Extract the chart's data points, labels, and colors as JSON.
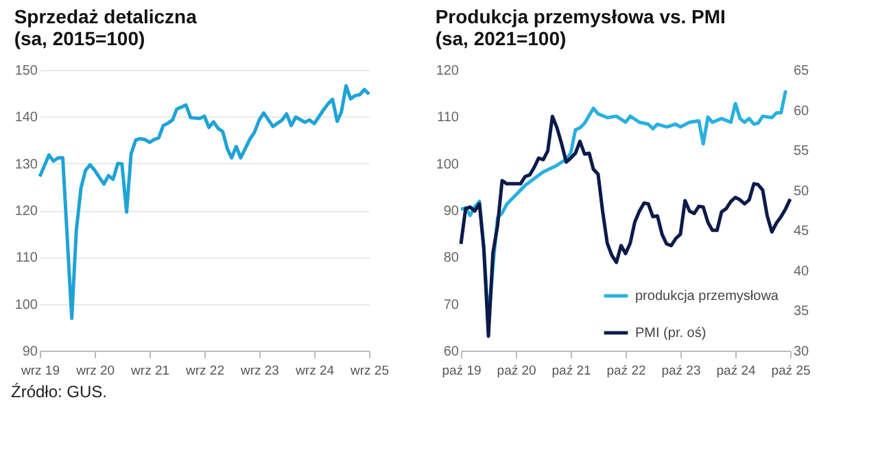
{
  "chart_data": [
    {
      "type": "line",
      "title": "Sprzedaż detaliczna",
      "subtitle": "(sa, 2015=100)",
      "grid": "y",
      "legend": false,
      "xlim": [
        "2019-09",
        "2025-09"
      ],
      "xticks": [
        {
          "value": "2019-09",
          "label": "wrz 19"
        },
        {
          "value": "2020-09",
          "label": "wrz 20"
        },
        {
          "value": "2021-09",
          "label": "wrz 21"
        },
        {
          "value": "2022-09",
          "label": "wrz 22"
        },
        {
          "value": "2023-09",
          "label": "wrz 23"
        },
        {
          "value": "2024-09",
          "label": "wrz 24"
        },
        {
          "value": "2025-09",
          "label": "wrz 25"
        }
      ],
      "ylim": [
        90,
        150
      ],
      "yticks": [
        90,
        100,
        110,
        120,
        130,
        140,
        150
      ],
      "series": [
        {
          "color": "#1fa3d6",
          "x": [
            "2019-09",
            "2019-11",
            "2019-12",
            "2020-01",
            "2020-02",
            "2020-04",
            "2020-05",
            "2020-06",
            "2020-07",
            "2020-08",
            "2020-09",
            "2020-11",
            "2020-12",
            "2021-01",
            "2021-02",
            "2021-03",
            "2021-04",
            "2021-05",
            "2021-06",
            "2021-07",
            "2021-08",
            "2021-09",
            "2021-10",
            "2021-11",
            "2021-12",
            "2022-01",
            "2022-02",
            "2022-03",
            "2022-05",
            "2022-06",
            "2022-08",
            "2022-09",
            "2022-10",
            "2022-11",
            "2022-12",
            "2023-01",
            "2023-02",
            "2023-03",
            "2023-04",
            "2023-05",
            "2023-07",
            "2023-08",
            "2023-09",
            "2023-10",
            "2023-12",
            "2024-02",
            "2024-03",
            "2024-04",
            "2024-05",
            "2024-07",
            "2024-08",
            "2024-09",
            "2024-11",
            "2024-12",
            "2025-01",
            "2025-02",
            "2025-03",
            "2025-04",
            "2025-05",
            "2025-06",
            "2025-07",
            "2025-08",
            "2025-09"
          ],
          "values": [
            127.2,
            131.8,
            130.5,
            131.2,
            131.2,
            96.9,
            115.6,
            124.7,
            128.5,
            129.7,
            128.5,
            125.6,
            127.4,
            126.6,
            130,
            129.9,
            119.6,
            132.1,
            135,
            135.3,
            135.1,
            134.5,
            135.1,
            135.5,
            138.1,
            138.6,
            139.3,
            141.6,
            142.5,
            139.8,
            139.6,
            140.1,
            137.7,
            138.9,
            137.5,
            136.8,
            133.1,
            131.2,
            133.6,
            131.2,
            135.2,
            136.7,
            139.3,
            140.8,
            137.9,
            139.3,
            140.6,
            138.1,
            139.9,
            138.8,
            139.3,
            138.5,
            141.4,
            142.7,
            143.7,
            139,
            141,
            146.6,
            143.8,
            144.5,
            144.7,
            145.8,
            144.8
          ]
        }
      ]
    },
    {
      "type": "line",
      "title": "Produkcja przemysłowa vs. PMI",
      "subtitle": "(sa, 2021=100)",
      "grid": false,
      "legend": "bottom right",
      "xlim": [
        "2019-10",
        "2025-10"
      ],
      "xticks": [
        {
          "value": "2019-10",
          "label": "paź 19"
        },
        {
          "value": "2020-10",
          "label": "paź 20"
        },
        {
          "value": "2021-10",
          "label": "paź 21"
        },
        {
          "value": "2022-10",
          "label": "paź 22"
        },
        {
          "value": "2023-10",
          "label": "paź 23"
        },
        {
          "value": "2024-10",
          "label": "paź 24"
        },
        {
          "value": "2025-10",
          "label": "paź 25"
        }
      ],
      "ylim": [
        60,
        120
      ],
      "yticks": [
        60,
        70,
        80,
        90,
        100,
        110,
        120
      ],
      "y2lim": [
        30,
        65
      ],
      "y2ticks": [
        30,
        35,
        40,
        45,
        50,
        55,
        60,
        65
      ],
      "series": [
        {
          "name": "produkcja przemysłowa",
          "color": "#29b0e0",
          "x": [
            "2019-10",
            "2019-11",
            "2019-12",
            "2020-01",
            "2020-02",
            "2020-03",
            "2020-04",
            "2020-05",
            "2020-06",
            "2020-07",
            "2020-08",
            "2020-09",
            "2020-10",
            "2020-12",
            "2021-02",
            "2021-04",
            "2021-07",
            "2021-09",
            "2021-10",
            "2021-11",
            "2021-12",
            "2022-01",
            "2022-03",
            "2022-04",
            "2022-06",
            "2022-08",
            "2022-10",
            "2022-11",
            "2023-01",
            "2023-03",
            "2023-04",
            "2023-05",
            "2023-07",
            "2023-09",
            "2023-10",
            "2023-12",
            "2024-02",
            "2024-03",
            "2024-04",
            "2024-05",
            "2024-07",
            "2024-09",
            "2024-10",
            "2024-11",
            "2024-12",
            "2025-01",
            "2025-02",
            "2025-03",
            "2025-04",
            "2025-06",
            "2025-07",
            "2025-08",
            "2025-09"
          ],
          "values": [
            90.2,
            90.5,
            88.9,
            90.7,
            91.9,
            82,
            66.2,
            78,
            88.4,
            89.4,
            91.3,
            92.3,
            93.3,
            95.3,
            96.8,
            98.2,
            99.6,
            100.9,
            102.2,
            107.2,
            107.6,
            108.6,
            111.8,
            110.6,
            109.8,
            110.1,
            108.8,
            110.1,
            108.8,
            108.4,
            107.4,
            108.4,
            107.8,
            108.4,
            107.8,
            108.8,
            109.1,
            104.2,
            109.9,
            108.8,
            109.6,
            108.8,
            112.8,
            109.6,
            108.8,
            109.6,
            108.4,
            108.6,
            110.1,
            109.8,
            110.8,
            110.8,
            115.6
          ]
        },
        {
          "name": "PMI (pr. oś)",
          "color": "#0c1a4b",
          "axis": "y2",
          "x": [
            "2019-10",
            "2019-11",
            "2019-12",
            "2020-01",
            "2020-02",
            "2020-03",
            "2020-04",
            "2020-05",
            "2020-06",
            "2020-07",
            "2020-08",
            "2020-09",
            "2020-10",
            "2020-11",
            "2020-12",
            "2021-01",
            "2021-02",
            "2021-03",
            "2021-04",
            "2021-05",
            "2021-06",
            "2021-07",
            "2021-08",
            "2021-09",
            "2021-10",
            "2021-11",
            "2021-12",
            "2022-01",
            "2022-02",
            "2022-03",
            "2022-04",
            "2022-05",
            "2022-06",
            "2022-07",
            "2022-08",
            "2022-09",
            "2022-10",
            "2022-11",
            "2022-12",
            "2023-01",
            "2023-02",
            "2023-03",
            "2023-04",
            "2023-05",
            "2023-06",
            "2023-07",
            "2023-08",
            "2023-09",
            "2023-10",
            "2023-11",
            "2023-12",
            "2024-01",
            "2024-02",
            "2024-03",
            "2024-04",
            "2024-05",
            "2024-06",
            "2024-07",
            "2024-08",
            "2024-09",
            "2024-10",
            "2024-11",
            "2024-12",
            "2025-01",
            "2025-02",
            "2025-03",
            "2025-04",
            "2025-05",
            "2025-06",
            "2025-07",
            "2025-08",
            "2025-09",
            "2025-10"
          ],
          "values": [
            43.3,
            47.7,
            47.9,
            47.4,
            48.3,
            42.8,
            31.8,
            42.2,
            45.6,
            51.2,
            50.8,
            50.8,
            50.8,
            50.8,
            51.7,
            51.9,
            52.9,
            54,
            53.8,
            54.9,
            59.2,
            57.8,
            55.8,
            53.5,
            54,
            54.6,
            56.1,
            54.5,
            54.6,
            52.6,
            52,
            47.4,
            43.4,
            41.9,
            41,
            43.1,
            42.1,
            43.4,
            46,
            47.4,
            48.4,
            48.3,
            46.7,
            46.8,
            44.5,
            43.3,
            43.1,
            44,
            44.5,
            48.7,
            47.4,
            47.1,
            48,
            47.9,
            46,
            45,
            45,
            47.3,
            47.7,
            48.6,
            49.1,
            48.8,
            48.3,
            48.8,
            50.8,
            50.7,
            50,
            46.8,
            44.8,
            45.9,
            46.7,
            47.7,
            48.9
          ]
        }
      ],
      "annotations": [
        "Źródło: GUS."
      ]
    }
  ]
}
